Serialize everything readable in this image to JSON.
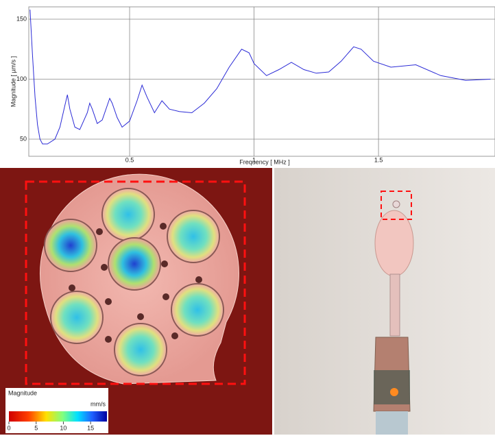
{
  "chart_data": {
    "type": "line",
    "x_label": "Frequency [ MHz ]",
    "y_label": "Magnitude [ µm/s ]",
    "xlim": [
      0.095,
      1.968
    ],
    "ylim": [
      35.7,
      160.3
    ],
    "xticks": [
      0.5,
      1,
      1.5
    ],
    "yticks": [
      50,
      100,
      150
    ],
    "grid": true,
    "series": [
      {
        "name": "Magnitude",
        "color": "#2a2ad6",
        "x": [
          0.1,
          0.11,
          0.12,
          0.13,
          0.14,
          0.15,
          0.17,
          0.2,
          0.22,
          0.24,
          0.25,
          0.26,
          0.28,
          0.3,
          0.33,
          0.34,
          0.35,
          0.37,
          0.39,
          0.42,
          0.43,
          0.45,
          0.47,
          0.5,
          0.53,
          0.55,
          0.57,
          0.6,
          0.63,
          0.66,
          0.7,
          0.75,
          0.8,
          0.85,
          0.9,
          0.95,
          0.98,
          1.0,
          1.05,
          1.1,
          1.15,
          1.2,
          1.25,
          1.3,
          1.35,
          1.4,
          1.43,
          1.48,
          1.55,
          1.65,
          1.75,
          1.85,
          1.95
        ],
        "values": [
          158,
          120,
          85,
          62,
          50,
          46,
          46,
          50,
          60,
          78,
          87,
          75,
          60,
          58,
          72,
          80,
          75,
          63,
          66,
          84,
          80,
          68,
          60,
          65,
          82,
          95,
          85,
          72,
          82,
          75,
          73,
          72,
          80,
          92,
          110,
          125,
          122,
          113,
          103,
          108,
          114,
          108,
          105,
          106,
          115,
          127,
          125,
          115,
          110,
          112,
          103,
          99,
          100
        ]
      }
    ]
  },
  "colorbar": {
    "title": "Magnitude",
    "unit": "mm/s",
    "ticks": [
      0,
      5,
      10,
      15
    ],
    "lim": [
      0,
      18
    ]
  }
}
